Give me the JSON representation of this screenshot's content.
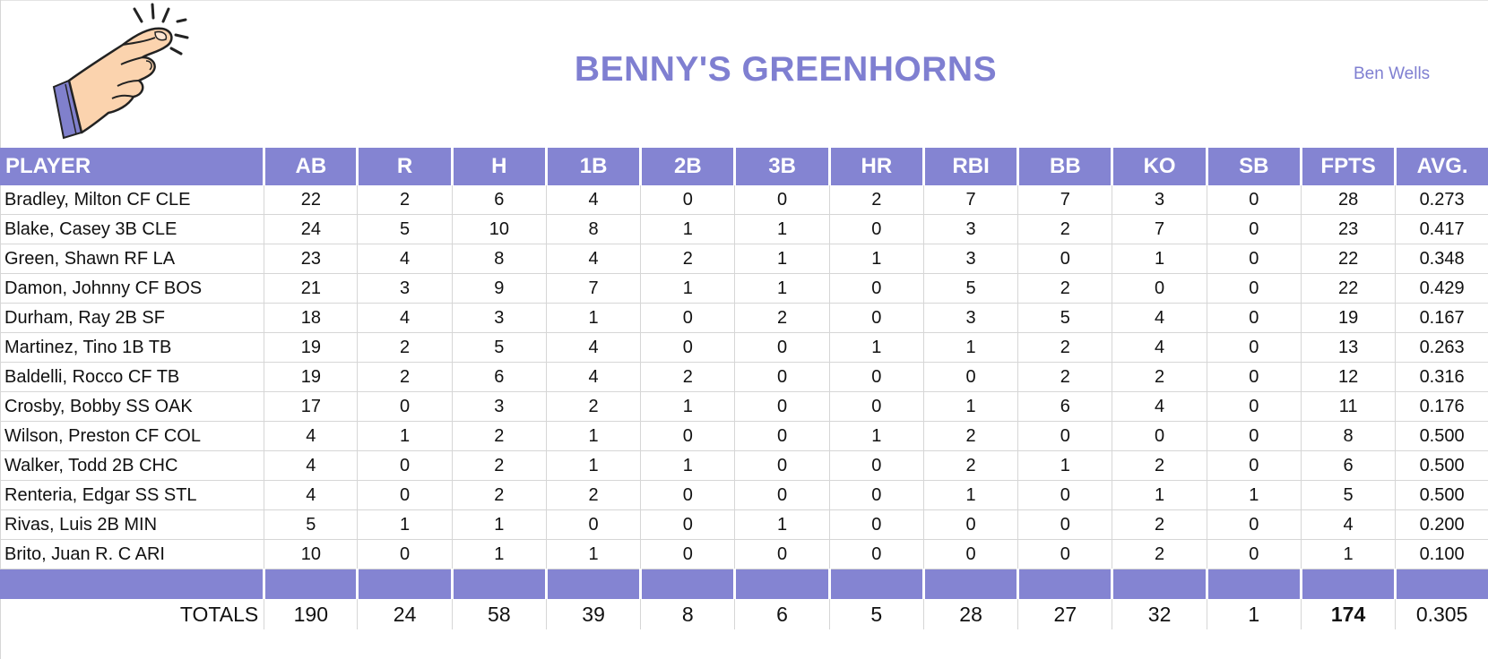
{
  "header": {
    "title": "BENNY'S GREENHORNS",
    "owner": "Ben Wells",
    "logo_icon": "fingers-crossed-hand-icon"
  },
  "colors": {
    "accent": "#8484d2",
    "title": "#7f7fd1"
  },
  "table": {
    "columns": [
      "PLAYER",
      "AB",
      "R",
      "H",
      "1B",
      "2B",
      "3B",
      "HR",
      "RBI",
      "BB",
      "KO",
      "SB",
      "FPTS",
      "AVG."
    ],
    "rows": [
      [
        "Bradley, Milton CF CLE",
        "22",
        "2",
        "6",
        "4",
        "0",
        "0",
        "2",
        "7",
        "7",
        "3",
        "0",
        "28",
        "0.273"
      ],
      [
        "Blake, Casey 3B CLE",
        "24",
        "5",
        "10",
        "8",
        "1",
        "1",
        "0",
        "3",
        "2",
        "7",
        "0",
        "23",
        "0.417"
      ],
      [
        "Green, Shawn RF LA",
        "23",
        "4",
        "8",
        "4",
        "2",
        "1",
        "1",
        "3",
        "0",
        "1",
        "0",
        "22",
        "0.348"
      ],
      [
        "Damon, Johnny CF BOS",
        "21",
        "3",
        "9",
        "7",
        "1",
        "1",
        "0",
        "5",
        "2",
        "0",
        "0",
        "22",
        "0.429"
      ],
      [
        "Durham, Ray 2B SF",
        "18",
        "4",
        "3",
        "1",
        "0",
        "2",
        "0",
        "3",
        "5",
        "4",
        "0",
        "19",
        "0.167"
      ],
      [
        "Martinez, Tino 1B TB",
        "19",
        "2",
        "5",
        "4",
        "0",
        "0",
        "1",
        "1",
        "2",
        "4",
        "0",
        "13",
        "0.263"
      ],
      [
        "Baldelli, Rocco CF TB",
        "19",
        "2",
        "6",
        "4",
        "2",
        "0",
        "0",
        "0",
        "2",
        "2",
        "0",
        "12",
        "0.316"
      ],
      [
        "Crosby, Bobby SS OAK",
        "17",
        "0",
        "3",
        "2",
        "1",
        "0",
        "0",
        "1",
        "6",
        "4",
        "0",
        "11",
        "0.176"
      ],
      [
        "Wilson, Preston CF COL",
        "4",
        "1",
        "2",
        "1",
        "0",
        "0",
        "1",
        "2",
        "0",
        "0",
        "0",
        "8",
        "0.500"
      ],
      [
        "Walker, Todd 2B CHC",
        "4",
        "0",
        "2",
        "1",
        "1",
        "0",
        "0",
        "2",
        "1",
        "2",
        "0",
        "6",
        "0.500"
      ],
      [
        "Renteria, Edgar SS STL",
        "4",
        "0",
        "2",
        "2",
        "0",
        "0",
        "0",
        "1",
        "0",
        "1",
        "1",
        "5",
        "0.500"
      ],
      [
        "Rivas, Luis 2B MIN",
        "5",
        "1",
        "1",
        "0",
        "0",
        "1",
        "0",
        "0",
        "0",
        "2",
        "0",
        "4",
        "0.200"
      ],
      [
        "Brito, Juan R. C ARI",
        "10",
        "0",
        "1",
        "1",
        "0",
        "0",
        "0",
        "0",
        "0",
        "2",
        "0",
        "1",
        "0.100"
      ]
    ],
    "totals": {
      "label": "TOTALS",
      "values": [
        "190",
        "24",
        "58",
        "39",
        "8",
        "6",
        "5",
        "28",
        "27",
        "32",
        "1",
        "174",
        "0.305"
      ]
    }
  }
}
